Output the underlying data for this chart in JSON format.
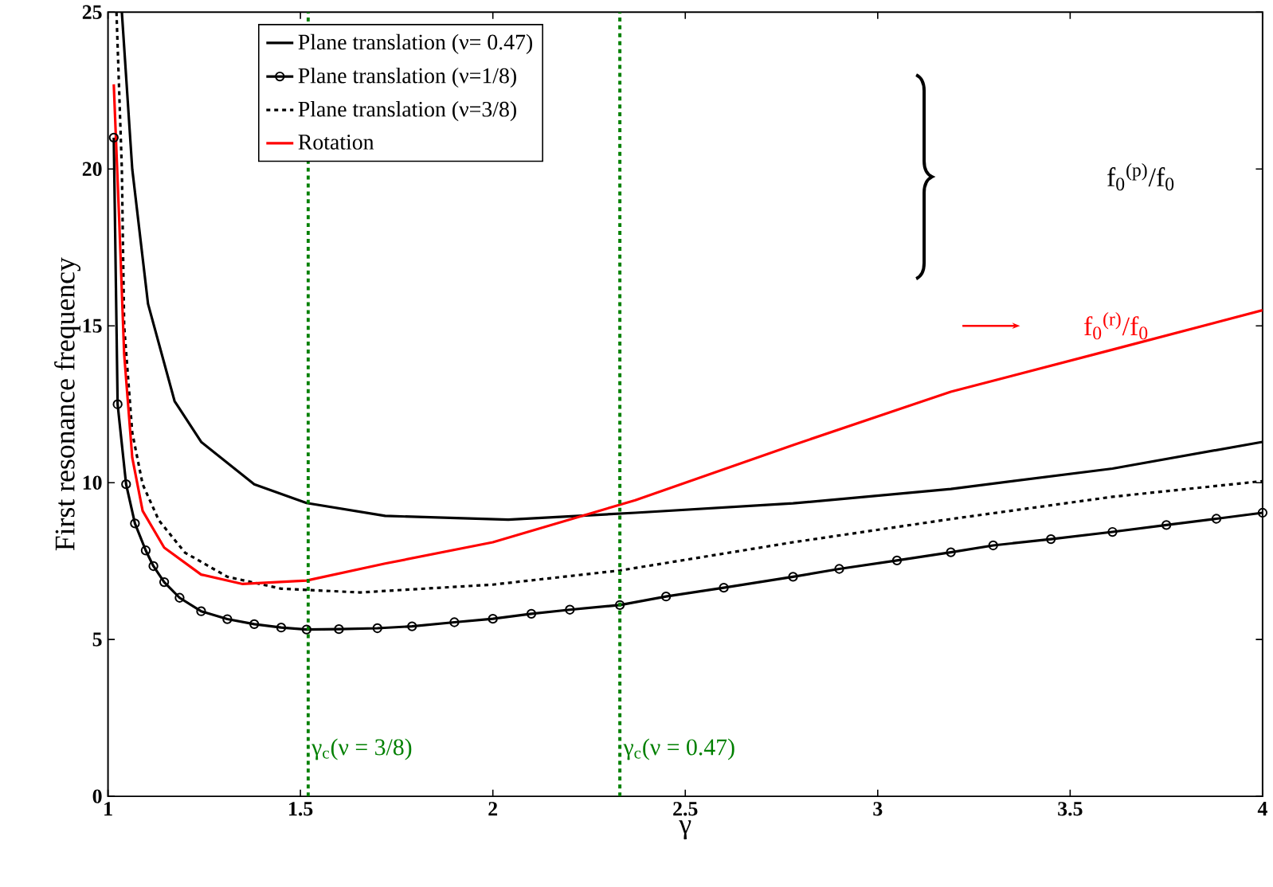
{
  "chart_data": {
    "type": "line",
    "xlabel": "γ",
    "ylabel": "First resonance frequency",
    "xlim": [
      1,
      4
    ],
    "ylim": [
      0,
      25
    ],
    "xticks": [
      1,
      1.5,
      2,
      2.5,
      3,
      3.5,
      4
    ],
    "yticks": [
      0,
      5,
      10,
      15,
      20,
      25
    ],
    "legend": "top left",
    "series": [
      {
        "name": "Plane translation (ν= 0.47)",
        "color": "#000000",
        "x": [
          1.036,
          1.063,
          1.104,
          1.173,
          1.242,
          1.38,
          1.516,
          1.72,
          2.04,
          2.37,
          2.78,
          3.19,
          3.61,
          4.0
        ],
        "values": [
          25,
          20,
          15.7,
          12.6,
          11.3,
          9.95,
          9.35,
          8.94,
          8.82,
          9.04,
          9.34,
          9.8,
          10.45,
          11.3
        ]
      },
      {
        "name": "Plane translation (ν=1/8)",
        "color": "#000000",
        "marker": "circle",
        "x": [
          1.015,
          1.025,
          1.047,
          1.07,
          1.098,
          1.118,
          1.146,
          1.186,
          1.242,
          1.31,
          1.38,
          1.45,
          1.516,
          1.6,
          1.7,
          1.79,
          1.9,
          2.0,
          2.1,
          2.2,
          2.33,
          2.45,
          2.6,
          2.78,
          2.9,
          3.05,
          3.19,
          3.3,
          3.45,
          3.61,
          3.75,
          3.88,
          4.0
        ],
        "values": [
          21,
          12.5,
          9.95,
          8.7,
          7.84,
          7.34,
          6.83,
          6.33,
          5.9,
          5.65,
          5.49,
          5.38,
          5.32,
          5.33,
          5.36,
          5.42,
          5.55,
          5.66,
          5.82,
          5.95,
          6.1,
          6.37,
          6.65,
          7.0,
          7.25,
          7.52,
          7.78,
          8.0,
          8.2,
          8.43,
          8.65,
          8.85,
          9.04
        ]
      },
      {
        "name": "Plane translation (ν=3/8)",
        "color": "#000000",
        "line_style": "dotted",
        "x": [
          1.022,
          1.036,
          1.042,
          1.063,
          1.09,
          1.132,
          1.2,
          1.31,
          1.45,
          1.655,
          2.0,
          2.33,
          2.78,
          3.19,
          3.61,
          4.0
        ],
        "values": [
          25,
          20,
          15,
          11.6,
          9.95,
          8.8,
          7.77,
          7.0,
          6.62,
          6.5,
          6.75,
          7.2,
          8.1,
          8.84,
          9.55,
          10.05
        ]
      },
      {
        "name": "Rotation",
        "color": "#ff0000",
        "x": [
          1.015,
          1.029,
          1.042,
          1.063,
          1.09,
          1.146,
          1.242,
          1.35,
          1.516,
          1.72,
          2.0,
          2.37,
          2.78,
          3.19,
          3.61,
          4.0
        ],
        "values": [
          22.7,
          18.4,
          14.1,
          10.8,
          9.1,
          7.93,
          7.07,
          6.77,
          6.88,
          7.42,
          8.1,
          9.44,
          11.2,
          12.9,
          14.24,
          15.5
        ]
      }
    ],
    "ref_lines": [
      {
        "axis": "x",
        "value": 1.52,
        "color": "#008000",
        "line_style": "dotted"
      },
      {
        "axis": "x",
        "value": 2.33,
        "color": "#008000",
        "line_style": "dotted"
      }
    ],
    "annotations": [
      "f$_{0}$$^{(p)}$/f$_{0}$",
      "f$_{0}$$^{(r)}$/f$_{0}$",
      {
        "text": "γ$_{c}$(ν = 3/8)",
        "x": 1.52,
        "y": 1.5
      },
      {
        "text": "γ$_{c}$(ν = 0.47)",
        "x": 2.33,
        "y": 1.5
      }
    ]
  }
}
